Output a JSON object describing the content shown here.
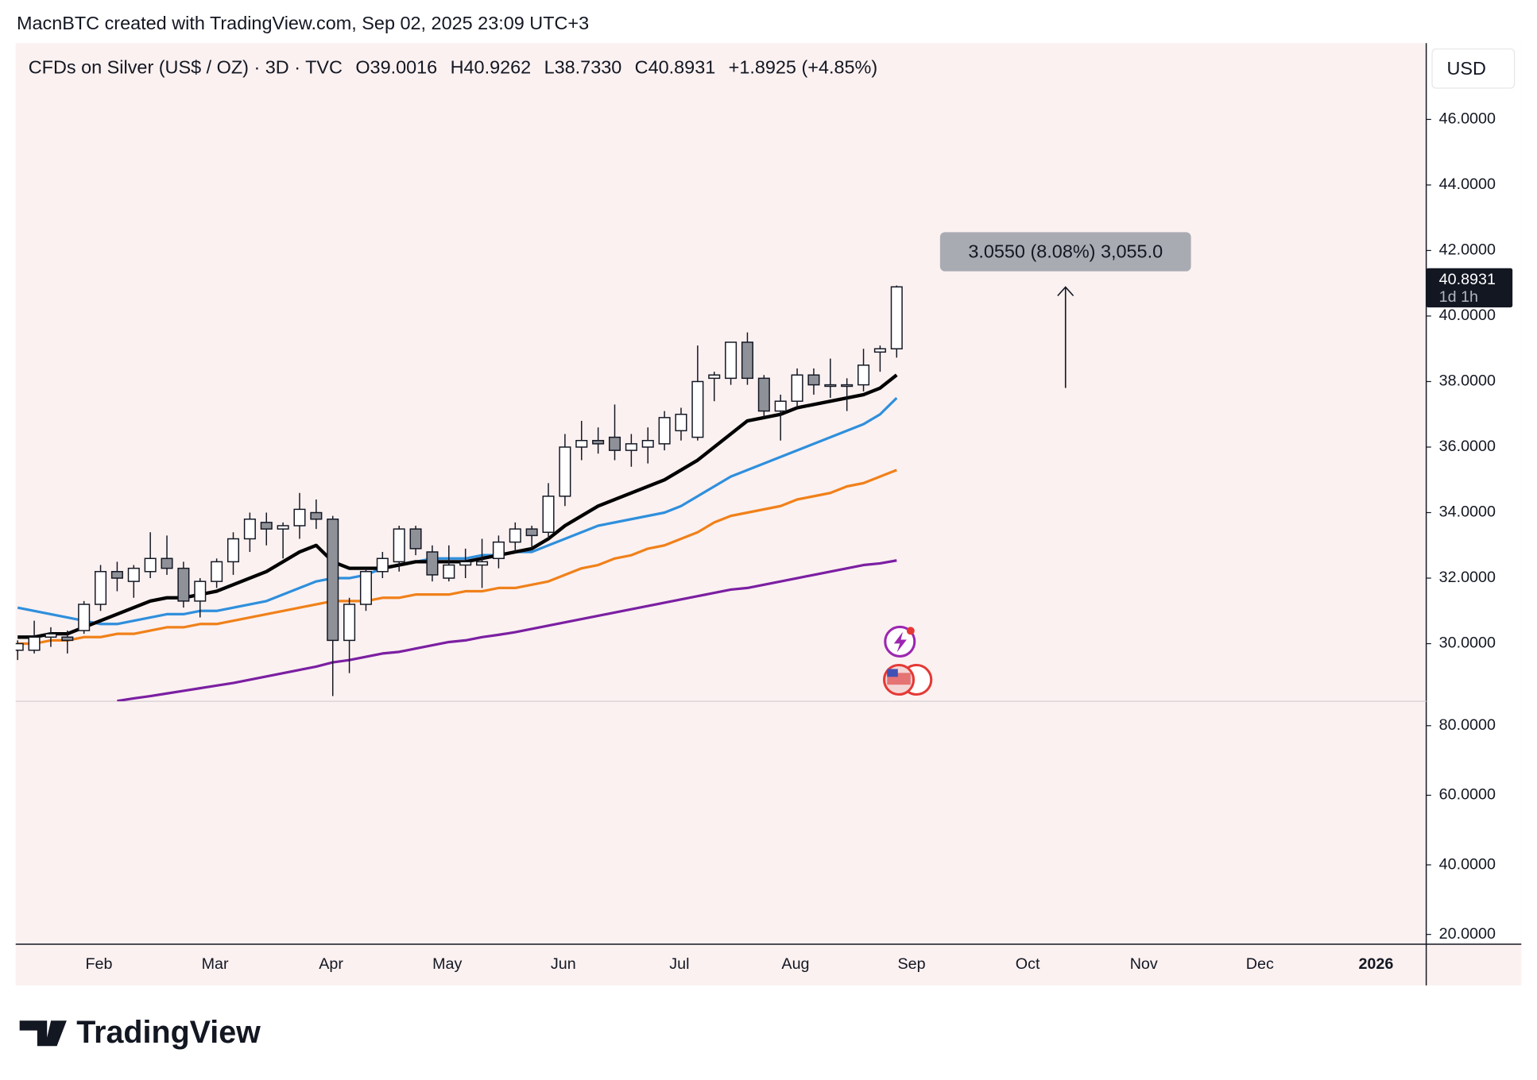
{
  "header": "MacnBTC created with TradingView.com, Sep 02, 2025 23:09 UTC+3",
  "watermark": "TradingView",
  "chart_data": {
    "type": "candlestick",
    "symbol": "CFDs on Silver (US$ / OZ) · 3D · TVC",
    "ohlc_labels": [
      "O39.0016",
      "H40.9262",
      "L38.7330",
      "C40.8931"
    ],
    "change": "+1.8925 (+4.85%)",
    "currency": "USD",
    "up_color": "#ffffff",
    "down_color": "#8f9198",
    "categories": [
      null,
      null,
      null,
      null,
      null,
      null,
      null,
      null,
      null,
      null,
      null,
      null,
      null,
      null,
      null,
      null,
      null,
      null,
      null,
      null,
      null,
      null,
      null,
      null,
      null,
      null,
      null,
      null,
      null,
      null,
      null,
      null,
      null,
      null,
      null,
      null,
      null,
      null,
      null,
      null,
      null,
      null,
      null,
      null,
      null,
      null,
      null,
      null,
      null,
      null,
      null,
      null,
      null,
      null
    ],
    "open": [
      29.8,
      29.8,
      30.2,
      30.2,
      30.4,
      31.2,
      32.2,
      31.9,
      32.2,
      32.6,
      32.3,
      31.3,
      31.9,
      32.5,
      33.2,
      33.7,
      33.5,
      33.6,
      34.0,
      33.8,
      30.1,
      31.2,
      32.2,
      32.5,
      33.5,
      32.8,
      32.0,
      32.4,
      32.4,
      32.6,
      33.1,
      33.5,
      33.4,
      34.5,
      36.0,
      36.2,
      36.3,
      35.9,
      36.0,
      36.1,
      36.5,
      36.3,
      38.1,
      38.1,
      39.2,
      38.1,
      37.1,
      37.4,
      38.2,
      37.9,
      37.9,
      37.9,
      38.9,
      39.0
    ],
    "high": [
      30.1,
      30.7,
      30.5,
      30.4,
      31.3,
      32.4,
      32.5,
      32.4,
      33.4,
      33.3,
      32.5,
      32.0,
      32.6,
      33.4,
      34.0,
      34.0,
      33.7,
      34.6,
      34.4,
      33.9,
      31.4,
      32.3,
      32.8,
      33.6,
      33.6,
      33.0,
      33.0,
      32.9,
      33.2,
      33.3,
      33.7,
      33.6,
      34.9,
      36.4,
      36.8,
      36.6,
      37.3,
      36.4,
      36.6,
      37.1,
      37.2,
      39.1,
      38.3,
      39.2,
      39.5,
      38.2,
      37.6,
      38.4,
      38.4,
      38.7,
      38.1,
      39.0,
      39.1,
      40.93
    ],
    "low": [
      29.5,
      29.7,
      29.9,
      29.7,
      30.3,
      31.0,
      31.6,
      31.4,
      32.0,
      32.1,
      31.1,
      30.8,
      31.7,
      32.1,
      32.8,
      33.0,
      32.6,
      33.2,
      33.5,
      28.4,
      29.1,
      31.0,
      32.0,
      32.2,
      32.7,
      31.9,
      31.9,
      32.0,
      31.7,
      32.3,
      32.8,
      32.9,
      33.2,
      34.2,
      35.6,
      35.8,
      35.6,
      35.4,
      35.5,
      35.9,
      36.2,
      36.2,
      37.4,
      37.9,
      37.9,
      36.9,
      36.2,
      37.2,
      37.6,
      37.5,
      37.1,
      37.7,
      38.3,
      38.73
    ],
    "close": [
      30.0,
      30.2,
      30.3,
      30.1,
      31.2,
      32.2,
      32.0,
      32.3,
      32.6,
      32.3,
      31.3,
      31.9,
      32.5,
      33.2,
      33.8,
      33.5,
      33.6,
      34.1,
      33.8,
      30.1,
      31.2,
      32.2,
      32.6,
      33.5,
      32.9,
      32.1,
      32.4,
      32.5,
      32.5,
      33.1,
      33.5,
      33.3,
      34.5,
      36.0,
      36.2,
      36.1,
      35.9,
      36.1,
      36.2,
      36.9,
      37.0,
      38.0,
      38.2,
      39.2,
      38.1,
      37.1,
      37.4,
      38.2,
      37.9,
      37.9,
      37.9,
      38.5,
      39.0,
      40.89
    ],
    "series": [
      {
        "color": "#7b1fa2",
        "values": [
          null,
          null,
          null,
          null,
          null,
          null,
          28.25,
          28.33,
          28.4,
          28.48,
          28.56,
          28.64,
          28.72,
          28.8,
          28.9,
          29.0,
          29.1,
          29.2,
          29.3,
          29.43,
          29.5,
          29.6,
          29.7,
          29.75,
          29.85,
          29.95,
          30.05,
          30.1,
          30.2,
          30.27,
          30.35,
          30.45,
          30.55,
          30.65,
          30.75,
          30.85,
          30.95,
          31.05,
          31.15,
          31.25,
          31.35,
          31.45,
          31.55,
          31.65,
          31.7,
          31.8,
          31.9,
          32.0,
          32.1,
          32.2,
          32.3,
          32.4,
          32.45,
          32.54
        ]
      },
      {
        "color": "#f0811a",
        "values": [
          30.0,
          30.0,
          30.1,
          30.1,
          30.2,
          30.2,
          30.3,
          30.3,
          30.4,
          30.5,
          30.5,
          30.6,
          30.6,
          30.7,
          30.8,
          30.9,
          31.0,
          31.1,
          31.2,
          31.3,
          31.3,
          31.3,
          31.4,
          31.4,
          31.5,
          31.5,
          31.5,
          31.6,
          31.6,
          31.7,
          31.7,
          31.8,
          31.9,
          32.1,
          32.3,
          32.4,
          32.6,
          32.7,
          32.9,
          33.0,
          33.2,
          33.4,
          33.7,
          33.9,
          34.0,
          34.1,
          34.2,
          34.4,
          34.5,
          34.6,
          34.8,
          34.9,
          35.1,
          35.3
        ]
      },
      {
        "color": "#2f8fdc",
        "values": [
          31.1,
          31.0,
          30.9,
          30.8,
          30.7,
          30.6,
          30.6,
          30.7,
          30.8,
          30.9,
          30.9,
          31.0,
          31.0,
          31.1,
          31.2,
          31.3,
          31.5,
          31.7,
          31.9,
          32.0,
          32.0,
          32.1,
          32.3,
          32.4,
          32.5,
          32.6,
          32.6,
          32.6,
          32.7,
          32.7,
          32.8,
          32.8,
          33.0,
          33.2,
          33.4,
          33.6,
          33.7,
          33.8,
          33.9,
          34.0,
          34.2,
          34.5,
          34.8,
          35.1,
          35.3,
          35.5,
          35.7,
          35.9,
          36.1,
          36.3,
          36.5,
          36.7,
          37.0,
          37.5
        ]
      },
      {
        "color": "#000000",
        "values": [
          30.2,
          30.2,
          30.3,
          30.3,
          30.5,
          30.7,
          30.9,
          31.1,
          31.3,
          31.4,
          31.4,
          31.5,
          31.6,
          31.8,
          32.0,
          32.2,
          32.5,
          32.8,
          33.0,
          32.5,
          32.3,
          32.3,
          32.3,
          32.4,
          32.5,
          32.5,
          32.5,
          32.5,
          32.6,
          32.7,
          32.8,
          32.9,
          33.2,
          33.6,
          33.9,
          34.2,
          34.4,
          34.6,
          34.8,
          35.0,
          35.3,
          35.6,
          36.0,
          36.4,
          36.8,
          36.9,
          37.0,
          37.2,
          37.3,
          37.4,
          37.5,
          37.6,
          37.8,
          38.2
        ]
      }
    ],
    "ylim": [
      28.24,
      48.33
    ],
    "yticks": [
      {
        "value": 30,
        "label": "30.0000"
      },
      {
        "value": 32,
        "label": "32.0000"
      },
      {
        "value": 34,
        "label": "34.0000"
      },
      {
        "value": 36,
        "label": "36.0000"
      },
      {
        "value": 38,
        "label": "38.0000"
      },
      {
        "value": 40,
        "label": "40.0000"
      },
      {
        "value": 42,
        "label": "42.0000"
      },
      {
        "value": 44,
        "label": "44.0000"
      },
      {
        "value": 46,
        "label": "46.0000"
      }
    ],
    "lower_pane": {
      "ylim": [
        17.46,
        87.0
      ],
      "yticks": [
        {
          "value": 20,
          "label": "20.0000"
        },
        {
          "value": 40,
          "label": "40.0000"
        },
        {
          "value": 60,
          "label": "60.0000"
        },
        {
          "value": 80,
          "label": "80.0000"
        }
      ]
    },
    "xtick_labels": [
      "Feb",
      "Mar",
      "Apr",
      "May",
      "Jun",
      "Jul",
      "Aug",
      "Sep",
      "Oct",
      "Nov",
      "Dec",
      "2026"
    ],
    "last_price": {
      "label": "40.8931",
      "countdown": "1d 1h"
    },
    "measure_label": "3.0550 (8.08%) 3,055.0"
  }
}
